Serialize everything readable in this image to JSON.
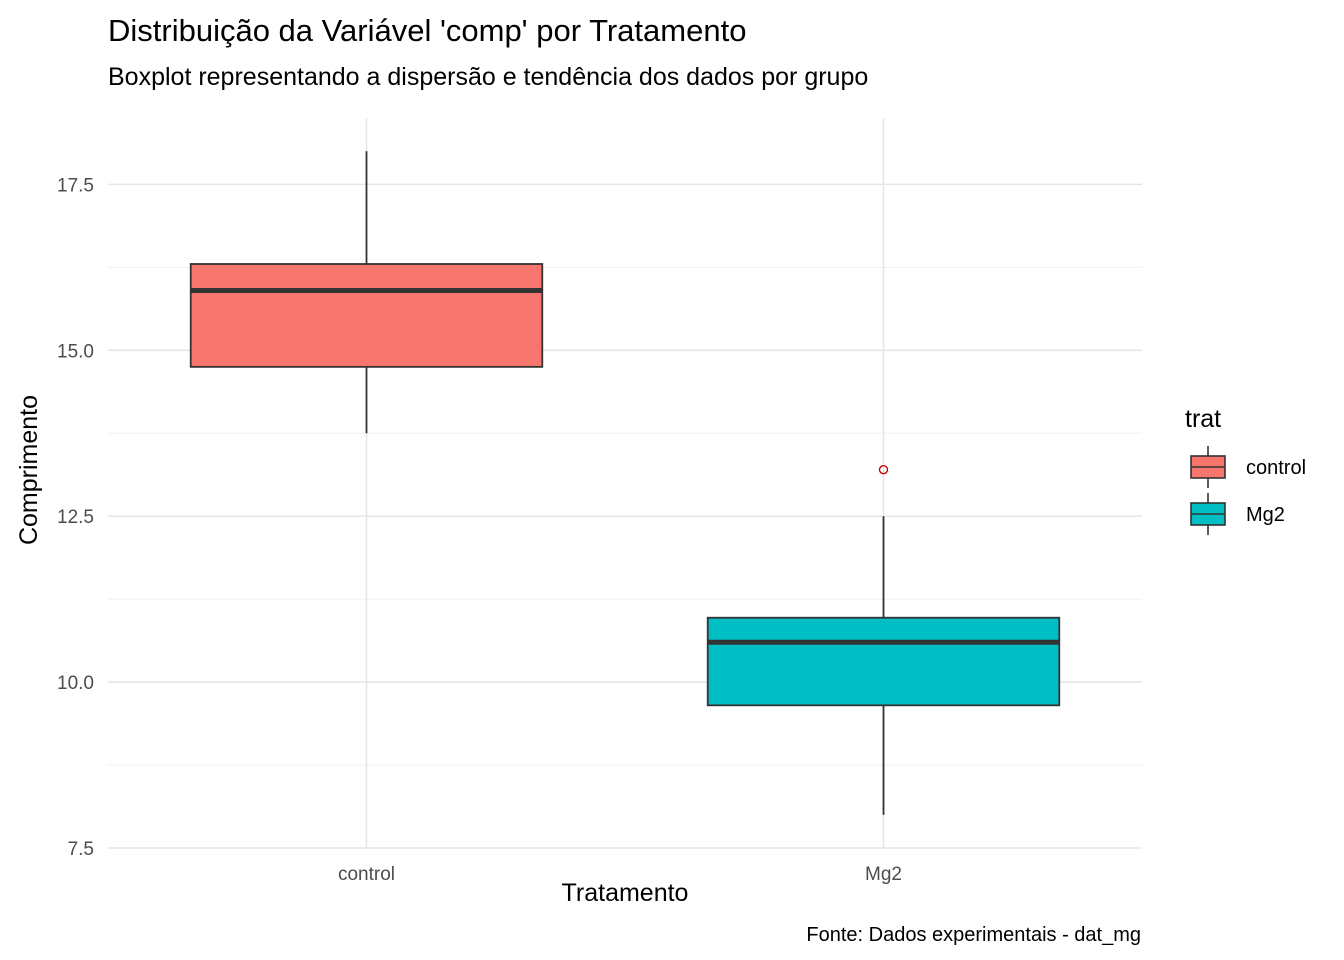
{
  "chart_data": {
    "type": "boxplot",
    "title": "Distribuição da Variável 'comp' por Tratamento",
    "subtitle": "Boxplot representando a dispersão e tendência dos dados por grupo",
    "xlabel": "Tratamento",
    "ylabel": "Comprimento",
    "caption": "Fonte: Dados experimentais - dat_mg",
    "categories": [
      "control",
      "Mg2"
    ],
    "ylim": [
      7.5,
      18.5
    ],
    "yticks": [
      7.5,
      10.0,
      12.5,
      15.0,
      17.5
    ],
    "ytick_labels": [
      "7.5",
      "10.0",
      "12.5",
      "15.0",
      "17.5"
    ],
    "grid": true,
    "legend": {
      "title": "trat",
      "position": "right",
      "entries": [
        "control",
        "Mg2"
      ]
    },
    "series": [
      {
        "name": "control",
        "color": "#F8766D",
        "min": 13.75,
        "q1": 14.75,
        "median": 15.9,
        "q3": 16.3,
        "max": 18.0,
        "outliers": []
      },
      {
        "name": "Mg2",
        "color": "#00BFC4",
        "min": 8.0,
        "q1": 9.65,
        "median": 10.6,
        "q3": 10.97,
        "max": 12.5,
        "outliers": [
          13.2
        ]
      }
    ],
    "outlier_color": "#CC0000",
    "box_outline_color": "#333333"
  }
}
